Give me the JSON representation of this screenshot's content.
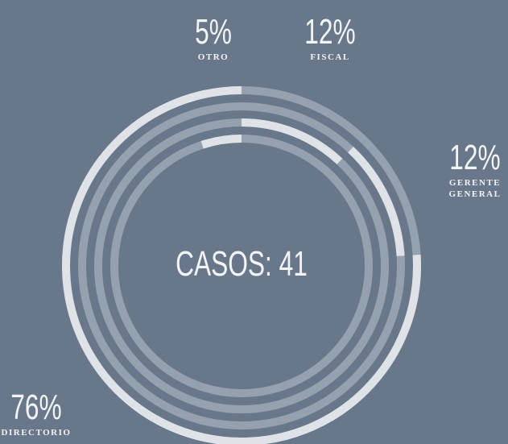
{
  "chart_data": {
    "type": "radial_bar",
    "center_label": "CASOS: 41",
    "categories": [
      "OTRO",
      "FISCAL",
      "GERENTE GENERAL",
      "DIRECTORIO"
    ],
    "values": [
      5,
      12,
      12,
      76
    ],
    "value_labels": [
      "5%",
      "12%",
      "12%",
      "76%"
    ],
    "color": "#dfe3e8",
    "track_color": "#95a1ae"
  }
}
